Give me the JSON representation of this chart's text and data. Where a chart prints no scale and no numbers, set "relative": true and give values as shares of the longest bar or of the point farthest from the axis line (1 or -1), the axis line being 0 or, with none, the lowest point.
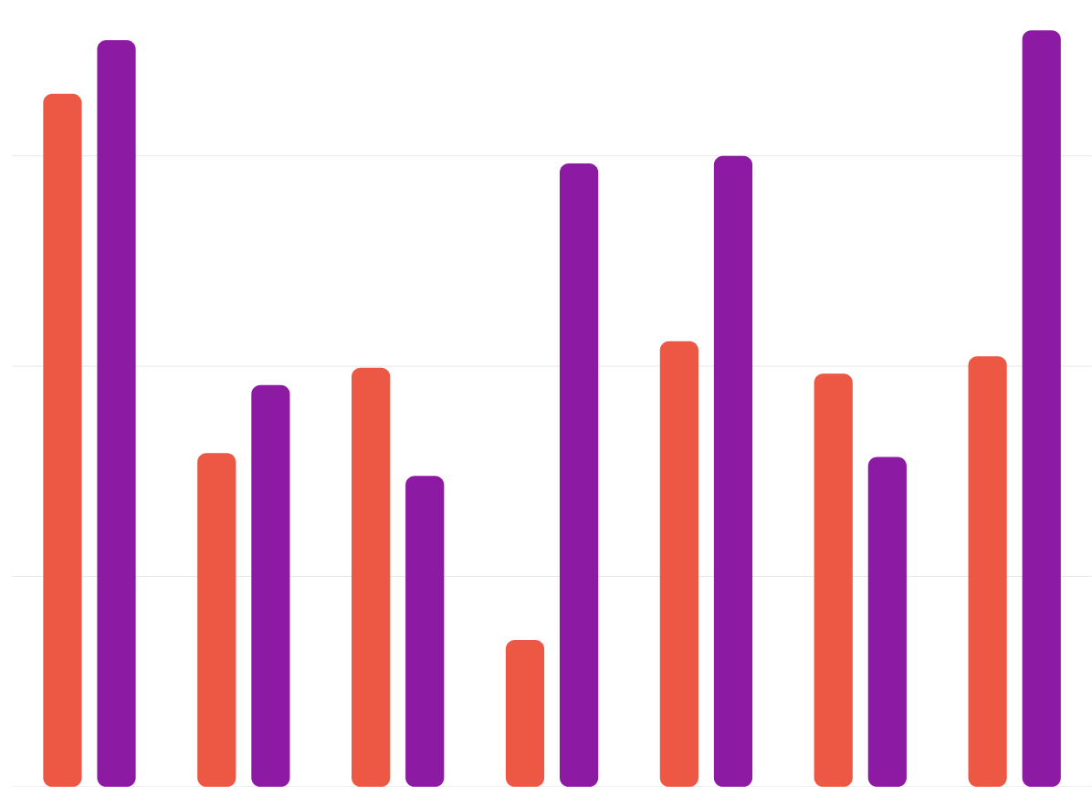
{
  "chart_data": {
    "type": "bar",
    "relative": true,
    "categories": [
      null,
      null,
      null,
      null,
      null,
      null,
      null
    ],
    "series": [
      {
        "color": "#ec5844",
        "values": [
          0.916,
          0.441,
          0.554,
          0.194,
          0.589,
          0.546,
          0.569
        ]
      },
      {
        "color": "#8c1aa3",
        "values": [
          0.987,
          0.531,
          0.411,
          0.824,
          0.834,
          0.436,
          1
        ]
      }
    ],
    "grid": "y"
  }
}
